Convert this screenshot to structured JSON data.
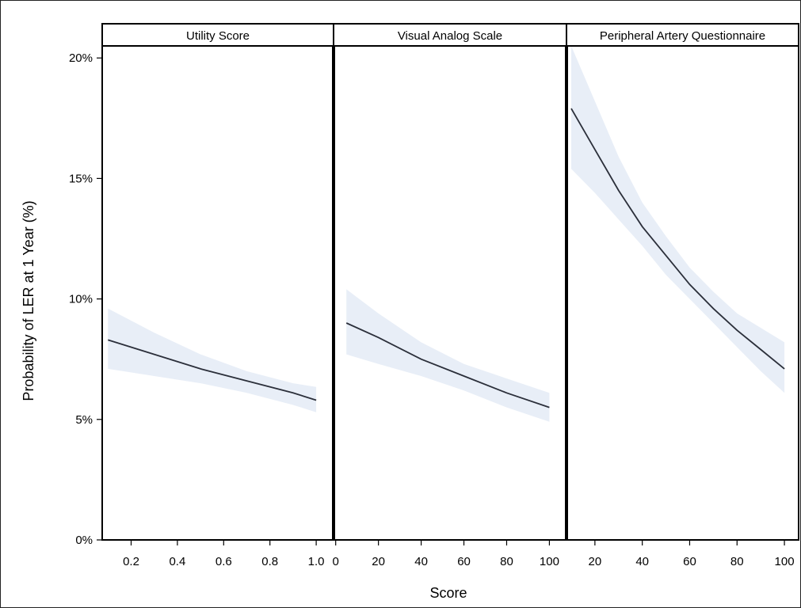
{
  "chart_data": {
    "type": "line",
    "xlabel": "Score",
    "ylabel": "Probability of LER at 1 Year (%)",
    "ylim": [
      0,
      20.5
    ],
    "y_ticks": [
      0,
      5,
      10,
      15,
      20
    ],
    "y_tick_labels": [
      "0%",
      "5%",
      "10%",
      "15%",
      "20%"
    ],
    "grid": false,
    "legend": "none",
    "colors": {
      "line": "#2b2f3a",
      "band": "#e8eef7",
      "frame": "#000000"
    },
    "panels": [
      {
        "title": "Utility Score",
        "xlim": [
          0.075,
          1.075
        ],
        "x_ticks": [
          0.2,
          0.4,
          0.6,
          0.8,
          1.0
        ],
        "x_tick_labels": [
          "0.2",
          "0.4",
          "0.6",
          "0.8",
          "1.0"
        ],
        "series": [
          {
            "x": [
              0.1,
              0.3,
              0.5,
              0.7,
              0.9,
              1.0
            ],
            "y": [
              8.3,
              7.7,
              7.1,
              6.6,
              6.1,
              5.8
            ],
            "lower": [
              7.1,
              6.8,
              6.5,
              6.1,
              5.6,
              5.3
            ],
            "upper": [
              9.6,
              8.6,
              7.7,
              7.0,
              6.5,
              6.35
            ]
          }
        ]
      },
      {
        "title": "Visual Analog Scale",
        "xlim": [
          -1,
          108
        ],
        "x_ticks": [
          0,
          20,
          40,
          60,
          80,
          100
        ],
        "x_tick_labels": [
          "0",
          "20",
          "40",
          "60",
          "80",
          "100"
        ],
        "series": [
          {
            "x": [
              5,
              20,
              40,
              60,
              80,
              100
            ],
            "y": [
              9.0,
              8.4,
              7.5,
              6.8,
              6.1,
              5.5
            ],
            "lower": [
              7.7,
              7.3,
              6.8,
              6.2,
              5.5,
              4.9
            ],
            "upper": [
              10.4,
              9.4,
              8.2,
              7.3,
              6.7,
              6.1
            ]
          }
        ]
      },
      {
        "title": "Peripheral Artery Questionnaire",
        "xlim": [
          8,
          106
        ],
        "x_ticks": [
          20,
          40,
          60,
          80,
          100
        ],
        "x_tick_labels": [
          "20",
          "40",
          "60",
          "80",
          "100"
        ],
        "series": [
          {
            "x": [
              10,
              20,
              30,
              40,
              50,
              60,
              70,
              80,
              90,
              100
            ],
            "y": [
              17.9,
              16.2,
              14.5,
              13.0,
              11.8,
              10.6,
              9.6,
              8.7,
              7.9,
              7.1
            ],
            "lower": [
              15.4,
              14.4,
              13.3,
              12.2,
              11.0,
              10.0,
              9.0,
              8.0,
              7.0,
              6.1
            ],
            "upper": [
              20.5,
              18.2,
              15.9,
              14.0,
              12.6,
              11.3,
              10.3,
              9.4,
              8.8,
              8.2
            ]
          }
        ]
      }
    ]
  }
}
